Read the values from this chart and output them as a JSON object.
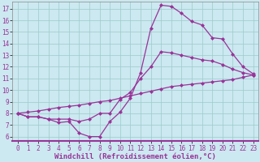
{
  "xlabel": "Windchill (Refroidissement éolien,°C)",
  "background_color": "#cce8f0",
  "plot_bg_color": "#cce8f0",
  "line_color": "#993399",
  "grid_color": "#99cccc",
  "xlim": [
    -0.5,
    23.5
  ],
  "ylim": [
    5.6,
    17.6
  ],
  "xticks": [
    0,
    1,
    2,
    3,
    4,
    5,
    6,
    7,
    8,
    9,
    10,
    11,
    12,
    13,
    14,
    15,
    16,
    17,
    18,
    19,
    20,
    21,
    22,
    23
  ],
  "yticks": [
    6,
    7,
    8,
    9,
    10,
    11,
    12,
    13,
    14,
    15,
    16,
    17
  ],
  "line1_x": [
    0,
    1,
    2,
    3,
    4,
    5,
    6,
    7,
    8,
    9,
    10,
    11,
    12,
    13,
    14,
    15,
    16,
    17,
    18,
    19,
    20,
    21,
    22,
    23
  ],
  "line1_y": [
    8.0,
    7.7,
    7.7,
    7.5,
    7.2,
    7.3,
    6.3,
    6.0,
    6.0,
    7.3,
    8.1,
    9.3,
    11.5,
    15.3,
    17.3,
    17.2,
    16.6,
    15.9,
    15.6,
    14.5,
    14.4,
    13.1,
    12.0,
    11.4
  ],
  "line2_x": [
    0,
    1,
    2,
    3,
    4,
    5,
    6,
    7,
    8,
    9,
    10,
    11,
    12,
    13,
    14,
    15,
    16,
    17,
    18,
    19,
    20,
    21,
    22,
    23
  ],
  "line2_y": [
    8.0,
    7.7,
    7.7,
    7.5,
    7.5,
    7.5,
    7.3,
    7.5,
    8.0,
    8.0,
    9.2,
    9.8,
    11.0,
    12.0,
    13.3,
    13.2,
    13.0,
    12.8,
    12.6,
    12.5,
    12.2,
    11.8,
    11.5,
    11.3
  ],
  "line3_x": [
    0,
    1,
    2,
    3,
    4,
    5,
    6,
    7,
    8,
    9,
    10,
    11,
    12,
    13,
    14,
    15,
    16,
    17,
    18,
    19,
    20,
    21,
    22,
    23
  ],
  "line3_y": [
    8.0,
    8.1,
    8.2,
    8.35,
    8.5,
    8.6,
    8.7,
    8.85,
    9.0,
    9.1,
    9.3,
    9.5,
    9.7,
    9.9,
    10.1,
    10.3,
    10.4,
    10.5,
    10.6,
    10.7,
    10.8,
    10.9,
    11.1,
    11.3
  ],
  "markersize": 2.5,
  "linewidth": 0.9,
  "xlabel_fontsize": 6.5,
  "tick_fontsize": 5.5
}
